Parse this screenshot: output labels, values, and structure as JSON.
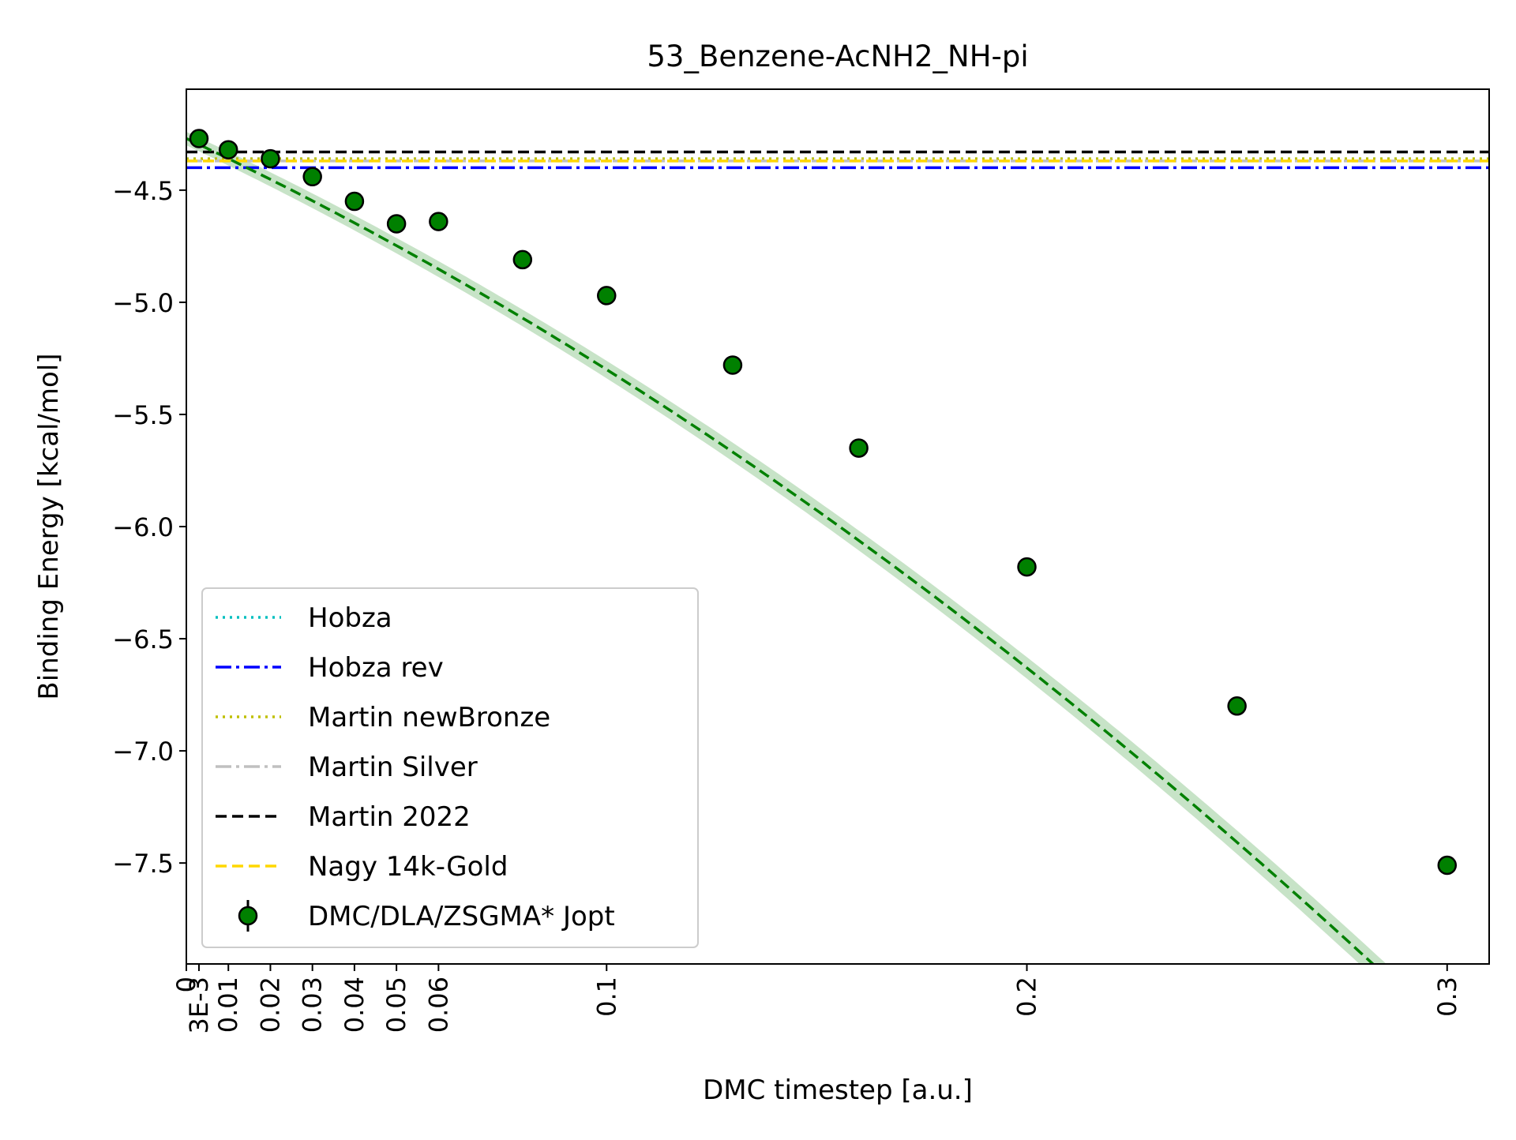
{
  "chart_data": {
    "type": "scatter",
    "title": "53_Benzene-AcNH2_NH-pi",
    "xlabel": "DMC timestep [a.u.]",
    "ylabel": "Binding Energy [kcal/mol]",
    "xlim": [
      0,
      0.31
    ],
    "ylim": [
      -7.95,
      -4.05
    ],
    "grid": false,
    "legend_position": "lower-left",
    "x_ticks": [
      {
        "value": 0,
        "label": "0"
      },
      {
        "value": 0.003,
        "label": "3E-3"
      },
      {
        "value": 0.01,
        "label": "0.01"
      },
      {
        "value": 0.02,
        "label": "0.02"
      },
      {
        "value": 0.03,
        "label": "0.03"
      },
      {
        "value": 0.04,
        "label": "0.04"
      },
      {
        "value": 0.05,
        "label": "0.05"
      },
      {
        "value": 0.06,
        "label": "0.06"
      },
      {
        "value": 0.1,
        "label": "0.1"
      },
      {
        "value": 0.2,
        "label": "0.2"
      },
      {
        "value": 0.3,
        "label": "0.3"
      }
    ],
    "y_ticks": [
      {
        "value": -4.5,
        "label": "−4.5"
      },
      {
        "value": -5.0,
        "label": "−5.0"
      },
      {
        "value": -5.5,
        "label": "−5.5"
      },
      {
        "value": -6.0,
        "label": "−6.0"
      },
      {
        "value": -6.5,
        "label": "−6.5"
      },
      {
        "value": -7.0,
        "label": "−7.0"
      },
      {
        "value": -7.5,
        "label": "−7.5"
      }
    ],
    "reference_lines": [
      {
        "name": "Hobza",
        "value": -4.36,
        "color": "#00bfbf",
        "style": "dotted"
      },
      {
        "name": "Hobza rev",
        "value": -4.4,
        "color": "#0000ff",
        "style": "dashdot"
      },
      {
        "name": "Martin newBronze",
        "value": -4.36,
        "color": "#bfbf00",
        "style": "dotted"
      },
      {
        "name": "Martin Silver",
        "value": -4.37,
        "color": "#c0c0c0",
        "style": "dashdot"
      },
      {
        "name": "Martin 2022",
        "value": -4.33,
        "color": "#000000",
        "style": "dashed"
      },
      {
        "name": "Nagy 14k-Gold",
        "value": -4.37,
        "color": "#ffd700",
        "style": "dashed"
      }
    ],
    "series": [
      {
        "name": "DMC/DLA/ZSGMA* Jopt",
        "color": "#008000",
        "x": [
          0.003,
          0.01,
          0.02,
          0.03,
          0.04,
          0.05,
          0.06,
          0.08,
          0.1,
          0.13,
          0.16,
          0.2,
          0.25,
          0.3
        ],
        "y": [
          -4.27,
          -4.32,
          -4.36,
          -4.44,
          -4.55,
          -4.65,
          -4.64,
          -4.81,
          -4.97,
          -5.28,
          -5.65,
          -6.18,
          -6.8,
          -7.51
        ],
        "yerr": [
          0.04,
          0.04,
          0.04,
          0.03,
          0.04,
          0.04,
          0.04,
          0.04,
          0.04,
          0.04,
          0.04,
          0.04,
          0.04,
          0.04
        ]
      }
    ],
    "fit": {
      "color": "#008000",
      "style": "dashed",
      "coefficients": [
        -4.27,
        -8.8,
        -15.0
      ],
      "band": 0.03,
      "band_color": "#008000"
    }
  }
}
